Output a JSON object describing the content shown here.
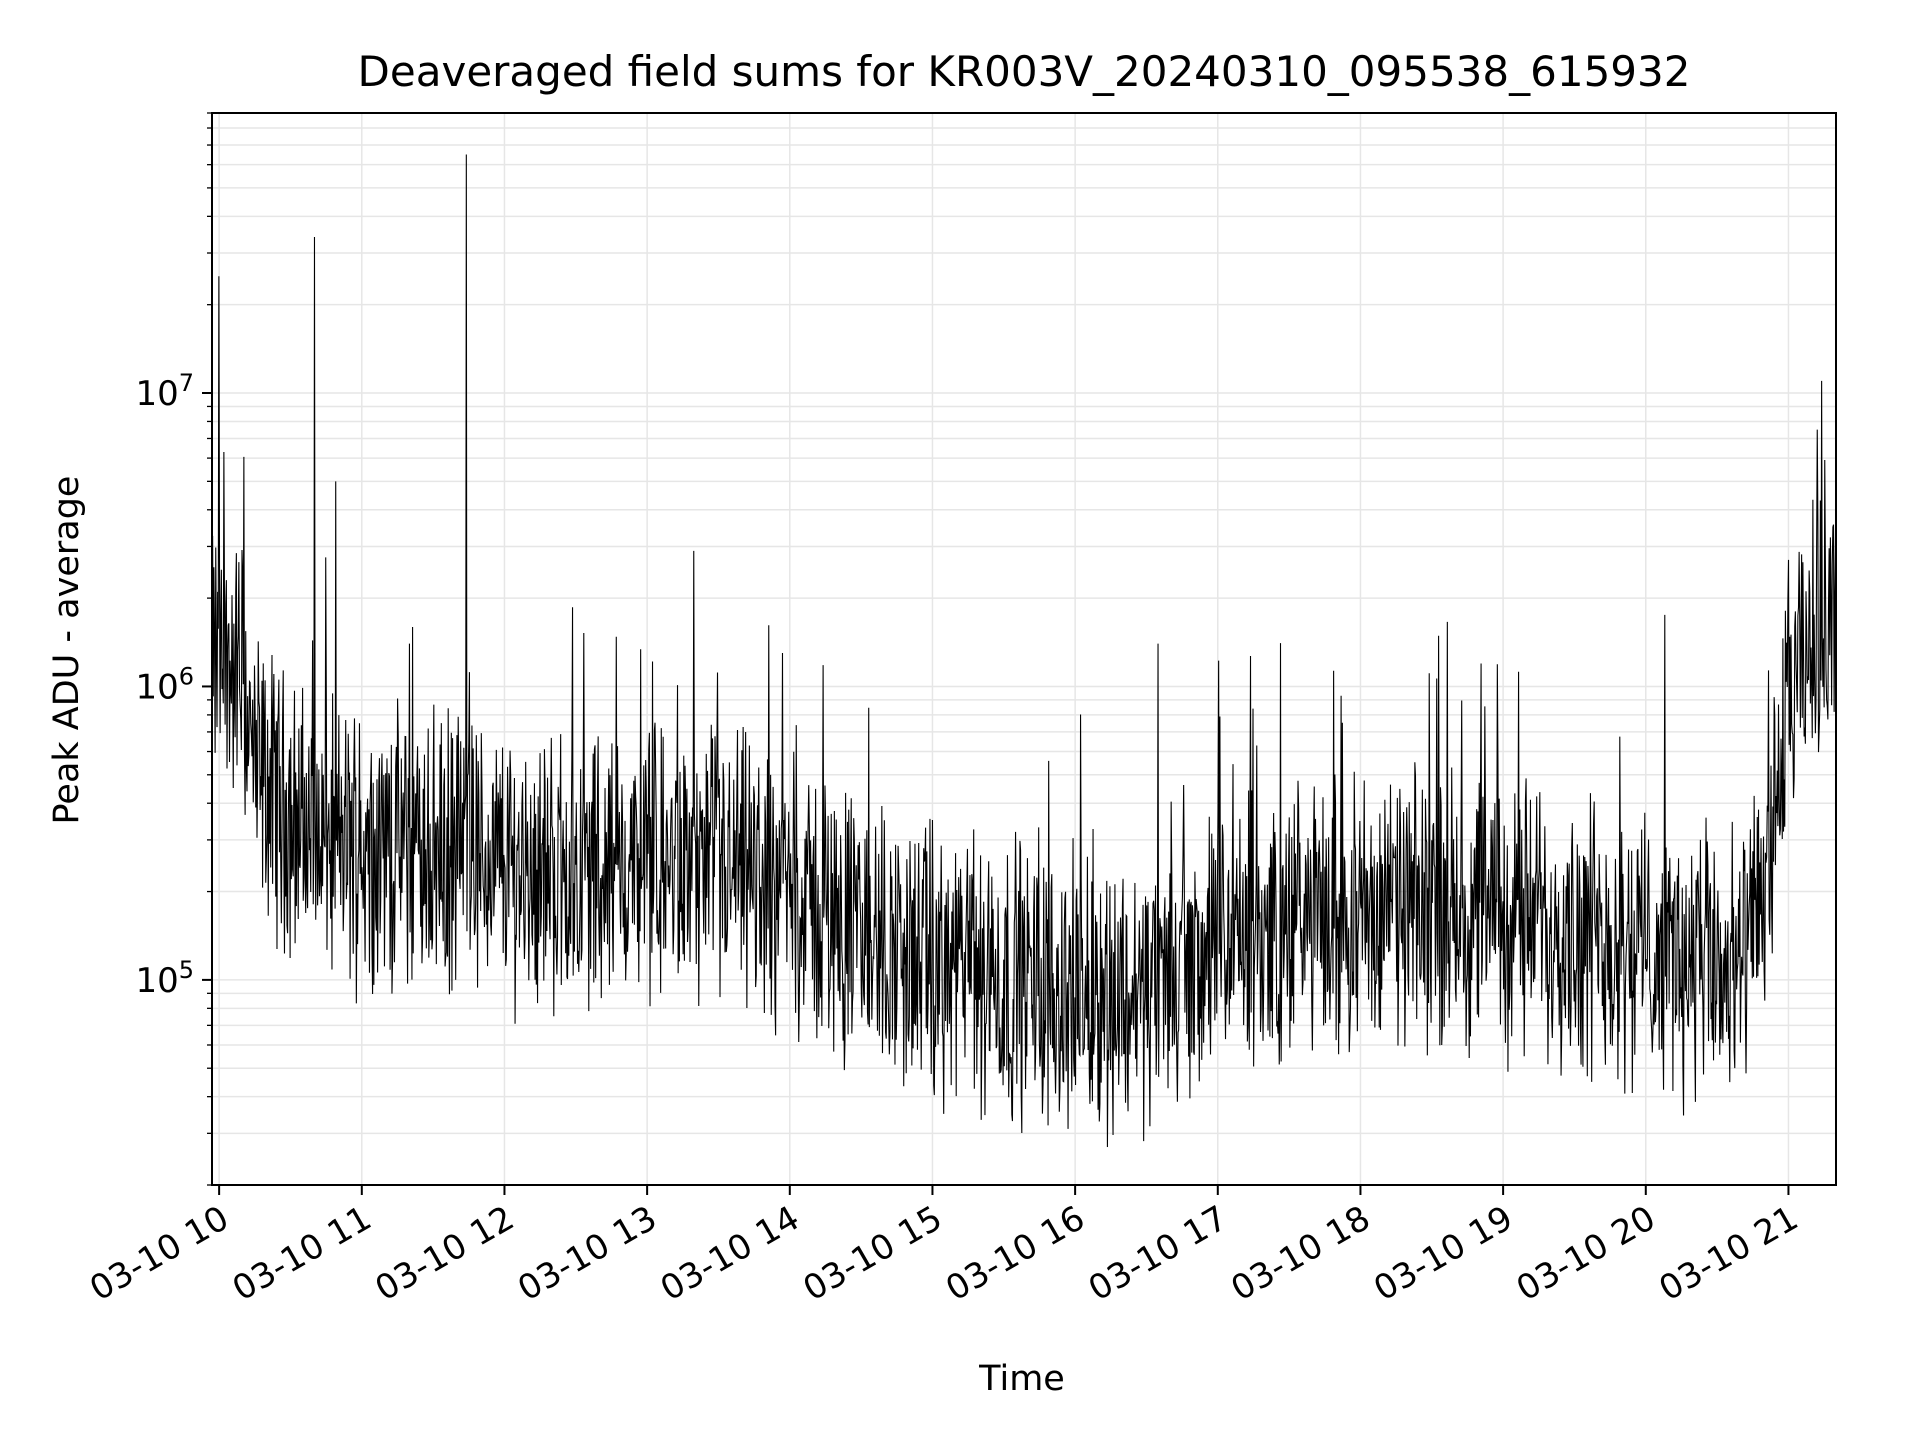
{
  "chart_data": {
    "type": "line",
    "title": "Deaveraged field sums for KR003V_20240310_095538_615932",
    "xlabel": "Time",
    "ylabel": "Peak ADU - average",
    "yscale": "log",
    "ylim": [
      20000,
      90000000
    ],
    "xlim": [
      "2024-03-10 09:57",
      "2024-03-10 21:20"
    ],
    "x_ticks": [
      "03-10 10",
      "03-10 11",
      "03-10 12",
      "03-10 13",
      "03-10 14",
      "03-10 15",
      "03-10 16",
      "03-10 17",
      "03-10 18",
      "03-10 19",
      "03-10 20",
      "03-10 21"
    ],
    "y_ticks": [
      {
        "base": "10",
        "exp": "5",
        "value": 100000
      },
      {
        "base": "10",
        "exp": "6",
        "value": 1000000
      },
      {
        "base": "10",
        "exp": "7",
        "value": 10000000
      }
    ],
    "grid": true,
    "line_color": "#000000",
    "grid_color": "#e6e6e6",
    "envelope": [
      {
        "t": "2024-03-10 09:57",
        "value": 1200000
      },
      {
        "t": "2024-03-10 10:10",
        "value": 1100000
      },
      {
        "t": "2024-03-10 10:15",
        "value": 500000
      },
      {
        "t": "2024-03-10 10:40",
        "value": 300000
      },
      {
        "t": "2024-03-10 11:30",
        "value": 270000
      },
      {
        "t": "2024-03-10 12:30",
        "value": 230000
      },
      {
        "t": "2024-03-10 13:00",
        "value": 240000
      },
      {
        "t": "2024-03-10 13:40",
        "value": 230000
      },
      {
        "t": "2024-03-10 14:20",
        "value": 160000
      },
      {
        "t": "2024-03-10 15:00",
        "value": 110000
      },
      {
        "t": "2024-03-10 16:00",
        "value": 90000
      },
      {
        "t": "2024-03-10 16:30",
        "value": 90000
      },
      {
        "t": "2024-03-10 17:00",
        "value": 130000
      },
      {
        "t": "2024-03-10 18:00",
        "value": 170000
      },
      {
        "t": "2024-03-10 19:00",
        "value": 170000
      },
      {
        "t": "2024-03-10 20:00",
        "value": 130000
      },
      {
        "t": "2024-03-10 20:40",
        "value": 100000
      },
      {
        "t": "2024-03-10 20:50",
        "value": 200000
      },
      {
        "t": "2024-03-10 21:00",
        "value": 800000
      },
      {
        "t": "2024-03-10 21:10",
        "value": 1400000
      },
      {
        "t": "2024-03-10 21:20",
        "value": 2000000
      }
    ],
    "spikes": [
      {
        "t": "2024-03-10 10:00",
        "value": 25000000
      },
      {
        "t": "2024-03-10 10:40",
        "value": 34000000
      },
      {
        "t": "2024-03-10 10:49",
        "value": 5000000
      },
      {
        "t": "2024-03-10 11:44",
        "value": 65000000
      },
      {
        "t": "2024-03-10 11:20",
        "value": 1400000
      },
      {
        "t": "2024-03-10 13:57",
        "value": 1300000
      },
      {
        "t": "2024-03-10 16:35",
        "value": 1400000
      },
      {
        "t": "2024-03-10 21:00",
        "value": 2700000
      },
      {
        "t": "2024-03-10 21:12",
        "value": 7500000
      },
      {
        "t": "2024-03-10 21:14",
        "value": 11000000
      }
    ]
  }
}
